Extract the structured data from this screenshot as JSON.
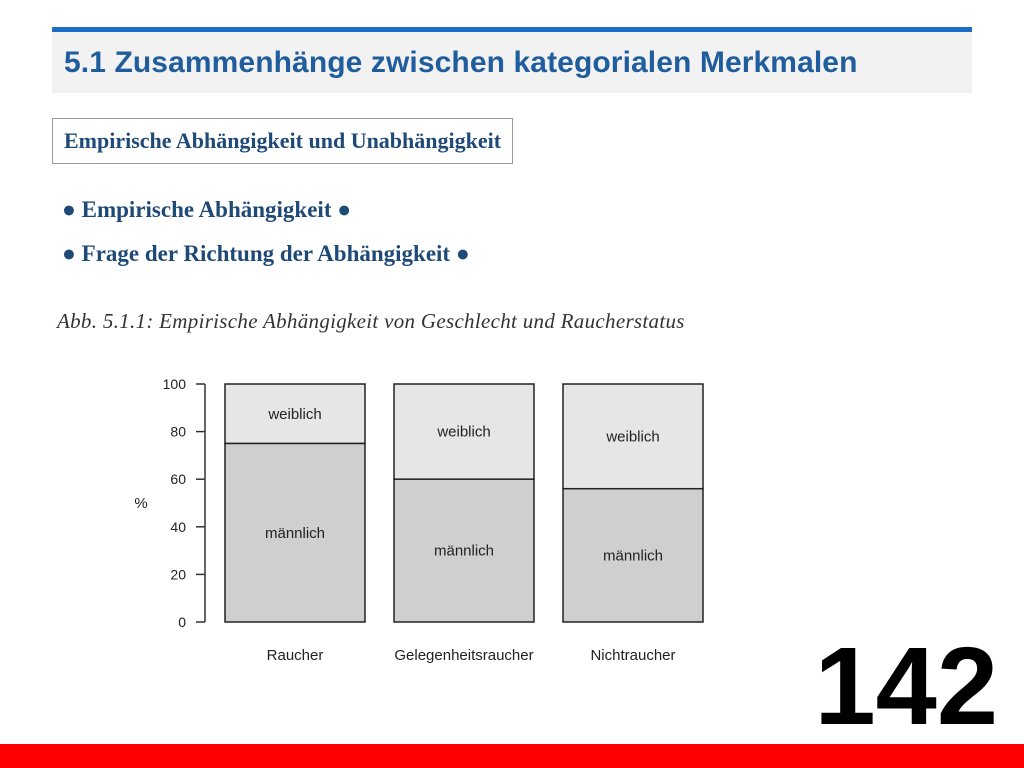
{
  "slide": {
    "title": "5.1 Zusammenhänge zwischen kategorialen Merkmalen",
    "subtitle": "Empirische Abhängigkeit und Unabhängigkeit",
    "bullets": [
      "● Empirische Abhängigkeit ●",
      "● Frage der Richtung der Abhängigkeit ●"
    ],
    "figure_caption": "Abb. 5.1.1: Empirische Abhängigkeit von Geschlecht und Raucherstatus",
    "page_number": "142"
  },
  "colors": {
    "title_bar_accent": "#1a6fc4",
    "title_text": "#1f5d9c",
    "body_text": "#1f4a78",
    "bottom_band": "#ff0000",
    "male_fill": "#cfcfcf",
    "female_fill": "#e6e6e6"
  },
  "chart_data": {
    "type": "bar",
    "stacked": true,
    "categories": [
      "Raucher",
      "Gelegenheitsraucher",
      "Nichtraucher"
    ],
    "series": [
      {
        "name": "männlich",
        "values": [
          75,
          60,
          56
        ]
      },
      {
        "name": "weiblich",
        "values": [
          25,
          40,
          44
        ]
      }
    ],
    "ylabel": "%",
    "xlabel": "",
    "ylim": [
      0,
      100
    ],
    "yticks": [
      0,
      20,
      40,
      60,
      80,
      100
    ],
    "grid": false,
    "legend": "none"
  }
}
